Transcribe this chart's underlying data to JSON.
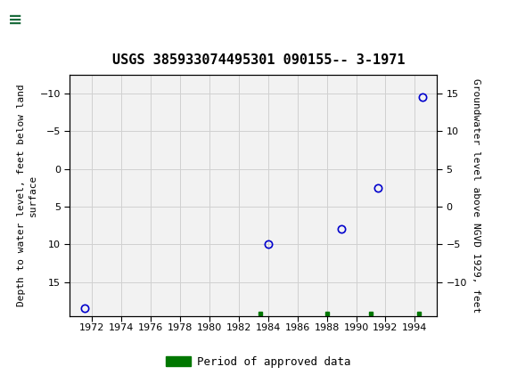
{
  "title": "USGS 385933074495301 090155-- 3-1971",
  "ylabel_left": "Depth to water level, feet below land\nsurface",
  "ylabel_right": "Groundwater level above NGVD 1929, feet",
  "xlim": [
    1970.5,
    1995.5
  ],
  "ylim_left": [
    19.5,
    -12.5
  ],
  "ylim_right": [
    -14.5,
    17.5
  ],
  "xticks": [
    1972,
    1974,
    1976,
    1978,
    1980,
    1982,
    1984,
    1986,
    1988,
    1990,
    1992,
    1994
  ],
  "yticks_left": [
    -10,
    -5,
    0,
    5,
    10,
    15
  ],
  "yticks_right": [
    15,
    10,
    5,
    0,
    -5,
    -10
  ],
  "data_points_x": [
    1971.5,
    1984.0,
    1989.0,
    1991.5,
    1994.5
  ],
  "data_points_y": [
    18.5,
    10.0,
    8.0,
    2.5,
    -9.5
  ],
  "approved_data_x": [
    1983.5,
    1988.0,
    1991.0,
    1994.3
  ],
  "point_color": "#0000cc",
  "approved_color": "#007700",
  "background_color": "#ffffff",
  "plot_bg_color": "#f2f2f2",
  "grid_color": "#d0d0d0",
  "header_color": "#1a6b3c",
  "title_fontsize": 11,
  "axis_label_fontsize": 8,
  "tick_fontsize": 8,
  "legend_fontsize": 9
}
